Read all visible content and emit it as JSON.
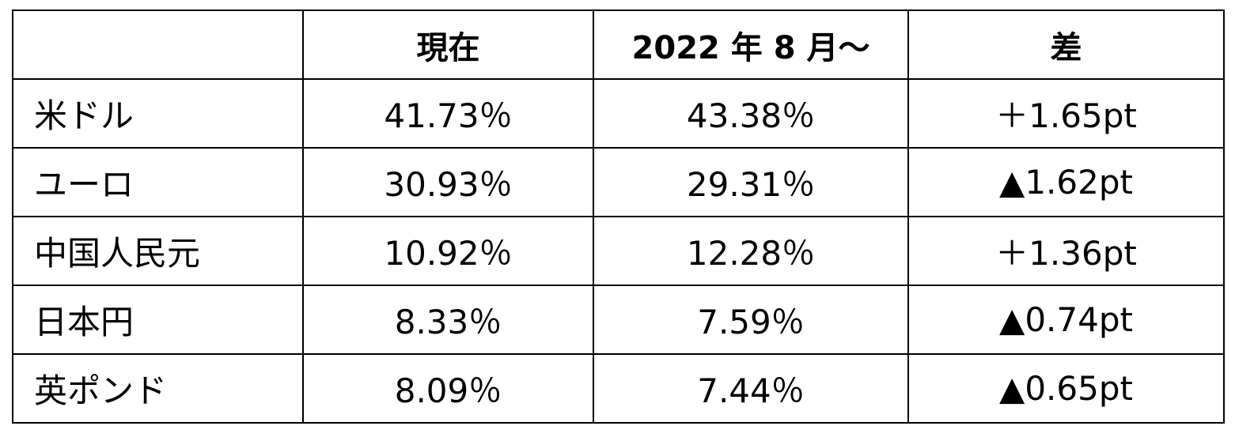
{
  "table": {
    "header": [
      "現在",
      "2022 年 8 月～",
      "差"
    ],
    "rows": [
      [
        "米ドル",
        "41.73％",
        "43.38％",
        "＋1.65pt"
      ],
      [
        "ユーロ",
        "30.93％",
        "29.31％",
        "▲1.62pt"
      ],
      [
        "中国人民元",
        "10.92％",
        "12.28％",
        "＋1.36pt"
      ],
      [
        "日本円",
        "8.33％",
        "7.59％",
        "▲0.74pt"
      ],
      [
        "英ポンド",
        "8.09％",
        "7.44％",
        "▲0.65pt"
      ]
    ]
  }
}
